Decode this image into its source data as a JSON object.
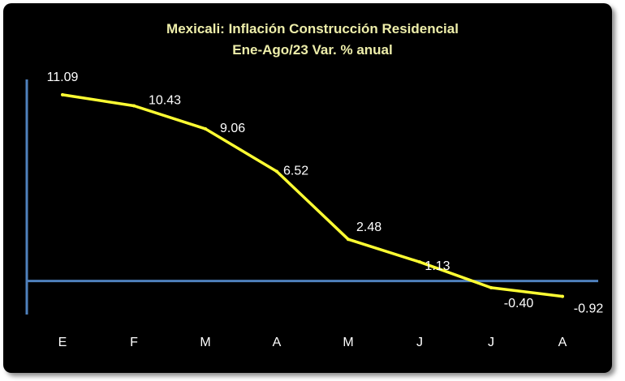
{
  "chart_data": {
    "type": "line",
    "title": "Mexicali: Inflación Construcción Residencial",
    "subtitle": "Ene-Ago/23 Var. % anual",
    "categories": [
      "E",
      "F",
      "M",
      "A",
      "M",
      "J",
      "J",
      "A"
    ],
    "series": [
      {
        "values": [
          11.09,
          10.43,
          9.06,
          6.52,
          2.48,
          1.13,
          -0.4,
          -0.92
        ],
        "data_labels": [
          "11.09",
          "10.43",
          "9.06",
          "6.52",
          "2.48",
          "1.13",
          "-0.40",
          "-0.92"
        ]
      }
    ],
    "xlabel": "",
    "ylabel": "",
    "ylim": [
      -2.0,
      12.0
    ],
    "grid": false,
    "legend": "none",
    "colors": {
      "background": "#000000",
      "line": "#ffff33",
      "axis": "#4f81bd",
      "title": "#eeeeaa",
      "text": "#ffffff"
    }
  }
}
